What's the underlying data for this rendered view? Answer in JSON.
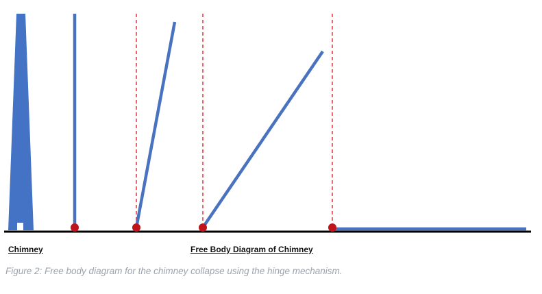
{
  "labels": {
    "chimney": "Chimney",
    "free_body_diagram": "Free Body Diagram of Chimney"
  },
  "caption": "Figure 2: Free body diagram for the chimney collapse using the hinge mechanism.",
  "colors": {
    "chimney_fill": "#4472c4",
    "rod": "#4a73bf",
    "hinge": "#c0141c",
    "guide_line": "#e0141c",
    "ground": "#000000",
    "caption": "#9aa3ad"
  },
  "stages": [
    {
      "name": "upright",
      "angle_from_vertical_deg": 0,
      "guide_line": false
    },
    {
      "name": "tilt-small",
      "angle_from_vertical_deg": 12,
      "guide_line": true
    },
    {
      "name": "tilt-medium",
      "angle_from_vertical_deg": 37,
      "guide_line": true
    },
    {
      "name": "fallen",
      "angle_from_vertical_deg": 90,
      "guide_line": true
    }
  ]
}
